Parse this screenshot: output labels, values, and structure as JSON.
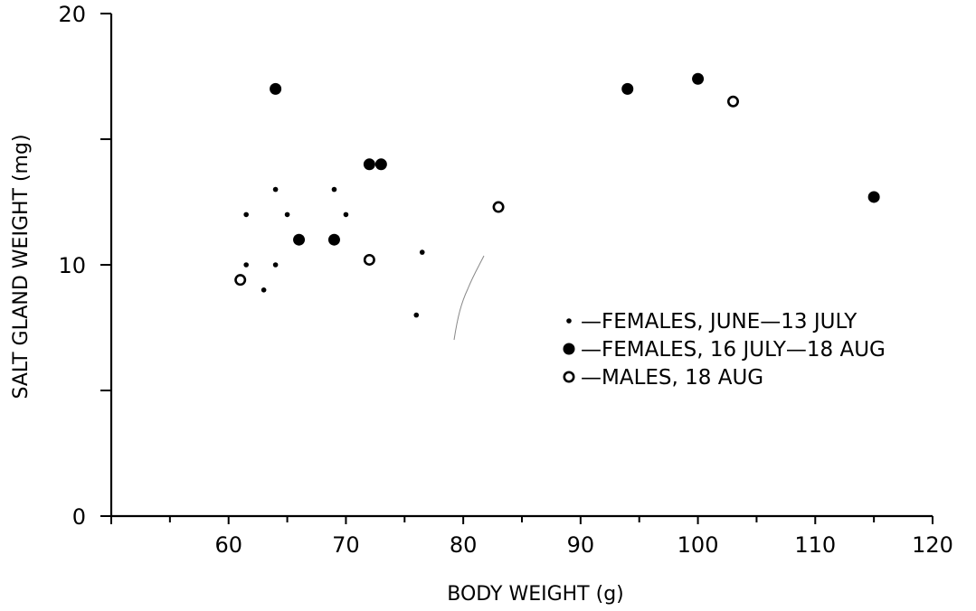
{
  "chart_data": {
    "type": "scatter",
    "title": "",
    "xlabel": "BODY WEIGHT (g)",
    "ylabel": "SALT GLAND WEIGHT (mg)",
    "xlim": [
      50,
      120
    ],
    "ylim": [
      0,
      20
    ],
    "x_ticks": [
      50,
      55,
      60,
      65,
      70,
      75,
      80,
      85,
      90,
      95,
      100,
      105,
      110,
      115,
      120
    ],
    "x_tick_labels": [
      "60",
      "70",
      "80",
      "90",
      "100",
      "110",
      "120"
    ],
    "x_tick_label_values": [
      60,
      70,
      80,
      90,
      100,
      110,
      120
    ],
    "y_ticks": [
      0,
      5,
      10,
      15,
      20
    ],
    "y_tick_labels": [
      "0",
      "10",
      "20"
    ],
    "y_tick_label_values": [
      0,
      10,
      20
    ],
    "grid": false,
    "legend_position": "right",
    "series": [
      {
        "name": "—FEMALES, JUNE—13 JULY",
        "marker": "small-dot",
        "color": "#000000",
        "points": [
          {
            "x": 61.5,
            "y": 12.0
          },
          {
            "x": 61.5,
            "y": 10.0
          },
          {
            "x": 63.0,
            "y": 9.0
          },
          {
            "x": 64.0,
            "y": 13.0
          },
          {
            "x": 64.0,
            "y": 10.0
          },
          {
            "x": 65.0,
            "y": 12.0
          },
          {
            "x": 69.0,
            "y": 13.0
          },
          {
            "x": 70.0,
            "y": 12.0
          },
          {
            "x": 76.0,
            "y": 8.0
          },
          {
            "x": 76.5,
            "y": 10.5
          }
        ]
      },
      {
        "name": "—FEMALES, 16 JULY—18 AUG",
        "marker": "filled-circle",
        "color": "#000000",
        "points": [
          {
            "x": 64.0,
            "y": 17.0
          },
          {
            "x": 66.0,
            "y": 11.0
          },
          {
            "x": 69.0,
            "y": 11.0
          },
          {
            "x": 72.0,
            "y": 14.0
          },
          {
            "x": 73.0,
            "y": 14.0
          },
          {
            "x": 94.0,
            "y": 17.0
          },
          {
            "x": 100.0,
            "y": 17.4
          },
          {
            "x": 115.0,
            "y": 12.7
          }
        ]
      },
      {
        "name": "—MALES, 18 AUG",
        "marker": "open-circle",
        "color": "#000000",
        "points": [
          {
            "x": 61.0,
            "y": 9.4
          },
          {
            "x": 72.0,
            "y": 10.2
          },
          {
            "x": 83.0,
            "y": 12.3
          },
          {
            "x": 103.0,
            "y": 16.5
          }
        ]
      }
    ],
    "legend": [
      {
        "label": "—FEMALES, JUNE—13 JULY",
        "marker": "small-dot"
      },
      {
        "label": "—FEMALES, 16 JULY—18 AUG",
        "marker": "filled-circle"
      },
      {
        "label": "—MALES, 18 AUG",
        "marker": "open-circle"
      }
    ]
  }
}
